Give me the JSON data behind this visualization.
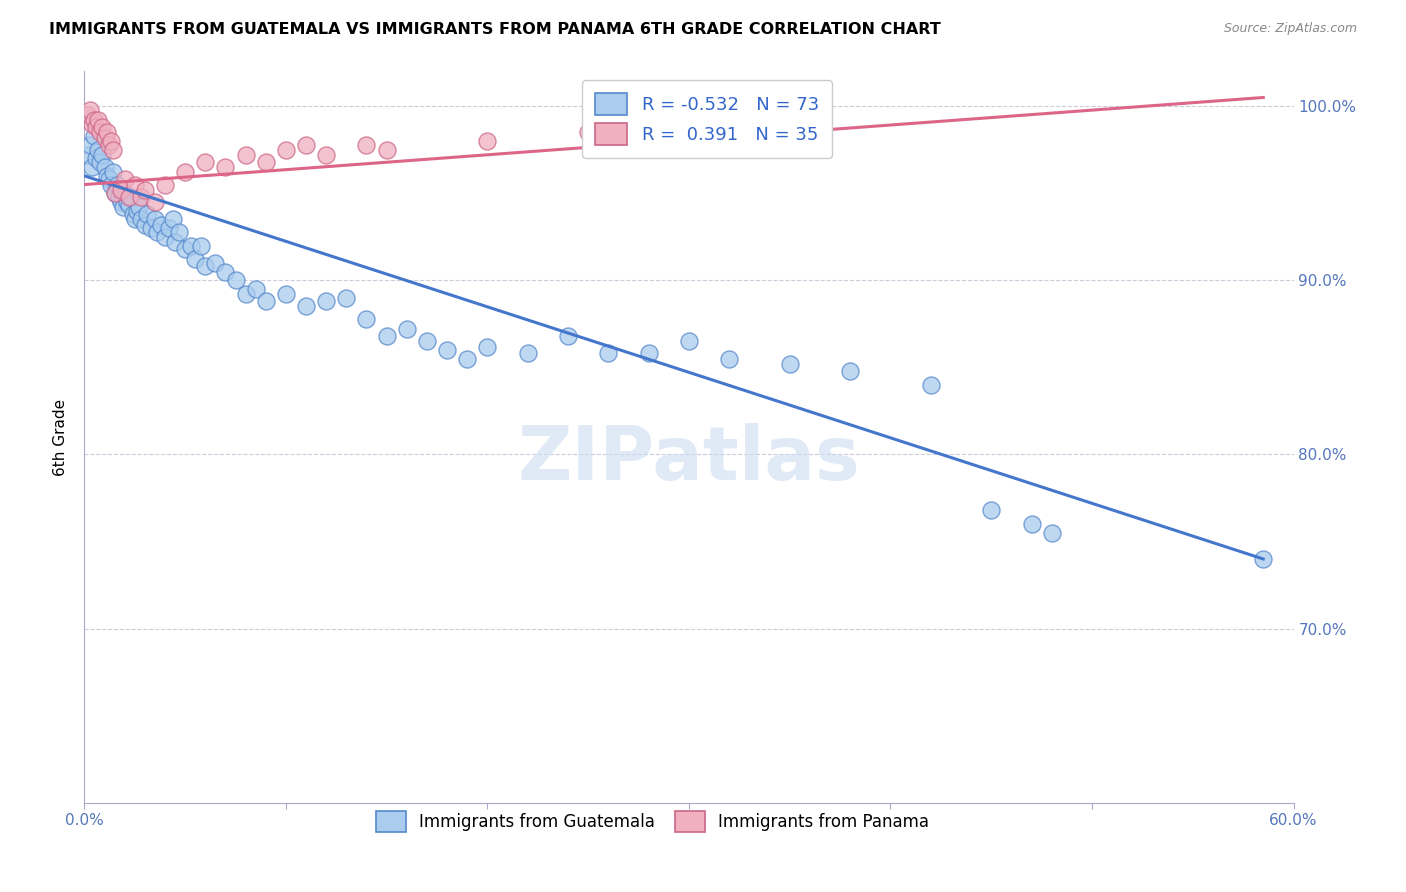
{
  "title": "IMMIGRANTS FROM GUATEMALA VS IMMIGRANTS FROM PANAMA 6TH GRADE CORRELATION CHART",
  "source": "Source: ZipAtlas.com",
  "ylabel": "6th Grade",
  "xlim": [
    0.0,
    0.6
  ],
  "ylim": [
    0.6,
    1.02
  ],
  "xtick_positions": [
    0.0,
    0.1,
    0.2,
    0.3,
    0.4,
    0.5,
    0.6
  ],
  "xticklabels": [
    "0.0%",
    "",
    "",
    "",
    "",
    "",
    "60.0%"
  ],
  "ytick_positions": [
    0.6,
    0.7,
    0.8,
    0.9,
    1.0
  ],
  "yticklabels_right": [
    "",
    "70.0%",
    "80.0%",
    "90.0%",
    "100.0%"
  ],
  "R_blue": -0.532,
  "N_blue": 73,
  "R_pink": 0.391,
  "N_pink": 35,
  "legend_labels": [
    "Immigrants from Guatemala",
    "Immigrants from Panama"
  ],
  "watermark": "ZIPatlas",
  "blue_fill": "#aaccee",
  "blue_edge": "#5588cc",
  "pink_fill": "#f0b0c0",
  "pink_edge": "#cc6688",
  "blue_line_color": "#4477cc",
  "pink_line_color": "#dd6688",
  "blue_scatter": [
    [
      0.002,
      0.972
    ],
    [
      0.003,
      0.978
    ],
    [
      0.004,
      0.965
    ],
    [
      0.005,
      0.983
    ],
    [
      0.006,
      0.97
    ],
    [
      0.007,
      0.975
    ],
    [
      0.008,
      0.968
    ],
    [
      0.009,
      0.972
    ],
    [
      0.01,
      0.965
    ],
    [
      0.011,
      0.96
    ],
    [
      0.012,
      0.958
    ],
    [
      0.013,
      0.955
    ],
    [
      0.014,
      0.962
    ],
    [
      0.015,
      0.95
    ],
    [
      0.016,
      0.955
    ],
    [
      0.017,
      0.948
    ],
    [
      0.018,
      0.945
    ],
    [
      0.019,
      0.942
    ],
    [
      0.02,
      0.95
    ],
    [
      0.021,
      0.945
    ],
    [
      0.022,
      0.943
    ],
    [
      0.023,
      0.948
    ],
    [
      0.024,
      0.938
    ],
    [
      0.025,
      0.935
    ],
    [
      0.026,
      0.94
    ],
    [
      0.027,
      0.942
    ],
    [
      0.028,
      0.935
    ],
    [
      0.03,
      0.932
    ],
    [
      0.031,
      0.938
    ],
    [
      0.033,
      0.93
    ],
    [
      0.035,
      0.935
    ],
    [
      0.036,
      0.928
    ],
    [
      0.038,
      0.932
    ],
    [
      0.04,
      0.925
    ],
    [
      0.042,
      0.93
    ],
    [
      0.044,
      0.935
    ],
    [
      0.045,
      0.922
    ],
    [
      0.047,
      0.928
    ],
    [
      0.05,
      0.918
    ],
    [
      0.053,
      0.92
    ],
    [
      0.055,
      0.912
    ],
    [
      0.058,
      0.92
    ],
    [
      0.06,
      0.908
    ],
    [
      0.065,
      0.91
    ],
    [
      0.07,
      0.905
    ],
    [
      0.075,
      0.9
    ],
    [
      0.08,
      0.892
    ],
    [
      0.085,
      0.895
    ],
    [
      0.09,
      0.888
    ],
    [
      0.1,
      0.892
    ],
    [
      0.11,
      0.885
    ],
    [
      0.12,
      0.888
    ],
    [
      0.13,
      0.89
    ],
    [
      0.14,
      0.878
    ],
    [
      0.15,
      0.868
    ],
    [
      0.16,
      0.872
    ],
    [
      0.17,
      0.865
    ],
    [
      0.18,
      0.86
    ],
    [
      0.19,
      0.855
    ],
    [
      0.2,
      0.862
    ],
    [
      0.22,
      0.858
    ],
    [
      0.24,
      0.868
    ],
    [
      0.26,
      0.858
    ],
    [
      0.28,
      0.858
    ],
    [
      0.3,
      0.865
    ],
    [
      0.32,
      0.855
    ],
    [
      0.35,
      0.852
    ],
    [
      0.38,
      0.848
    ],
    [
      0.42,
      0.84
    ],
    [
      0.45,
      0.768
    ],
    [
      0.47,
      0.76
    ],
    [
      0.48,
      0.755
    ],
    [
      0.585,
      0.74
    ]
  ],
  "pink_scatter": [
    [
      0.002,
      0.995
    ],
    [
      0.003,
      0.998
    ],
    [
      0.004,
      0.99
    ],
    [
      0.005,
      0.992
    ],
    [
      0.006,
      0.988
    ],
    [
      0.007,
      0.992
    ],
    [
      0.008,
      0.985
    ],
    [
      0.009,
      0.988
    ],
    [
      0.01,
      0.982
    ],
    [
      0.011,
      0.985
    ],
    [
      0.012,
      0.978
    ],
    [
      0.013,
      0.98
    ],
    [
      0.014,
      0.975
    ],
    [
      0.015,
      0.95
    ],
    [
      0.018,
      0.952
    ],
    [
      0.02,
      0.958
    ],
    [
      0.022,
      0.948
    ],
    [
      0.025,
      0.955
    ],
    [
      0.028,
      0.948
    ],
    [
      0.03,
      0.952
    ],
    [
      0.035,
      0.945
    ],
    [
      0.04,
      0.955
    ],
    [
      0.05,
      0.962
    ],
    [
      0.06,
      0.968
    ],
    [
      0.07,
      0.965
    ],
    [
      0.08,
      0.972
    ],
    [
      0.09,
      0.968
    ],
    [
      0.1,
      0.975
    ],
    [
      0.11,
      0.978
    ],
    [
      0.12,
      0.972
    ],
    [
      0.14,
      0.978
    ],
    [
      0.15,
      0.975
    ],
    [
      0.2,
      0.98
    ],
    [
      0.25,
      0.985
    ],
    [
      0.3,
      0.99
    ]
  ],
  "blue_trendline_x": [
    0.0,
    0.585
  ],
  "blue_trendline_y": [
    0.96,
    0.74
  ],
  "pink_trendline_x": [
    0.0,
    0.585
  ],
  "pink_trendline_y": [
    0.955,
    1.005
  ]
}
